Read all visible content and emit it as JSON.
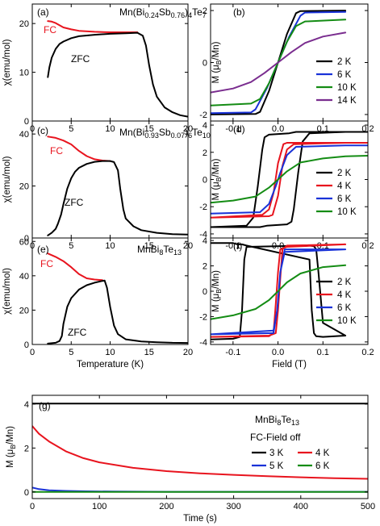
{
  "figure": {
    "xlabel_left": "Temperature (K)",
    "xlabel_right": "Field (T)",
    "xlabel_bottom": "Time (s)",
    "ylabel_chi": "χ(emu/mol)",
    "ylabel_M_prefix": "M (μ",
    "ylabel_M_sub": "B",
    "ylabel_M_suffix": "/Mn)"
  },
  "colors": {
    "black": "#000000",
    "red": "#e8141e",
    "blue": "#1932d8",
    "green": "#148c14",
    "purple": "#7a2d8f"
  },
  "chart_data": [
    {
      "id": "a",
      "type": "line",
      "panel_label": "(a)",
      "title_parts": [
        "Mn(Bi",
        "0.24",
        "Sb",
        "0.76",
        ")",
        "4",
        "Te",
        "7"
      ],
      "xlim": [
        0,
        20
      ],
      "ylim": [
        0,
        24
      ],
      "xticks": [
        0,
        5,
        10,
        15,
        20
      ],
      "yticks": [
        0,
        10,
        20
      ],
      "xlabel": "",
      "ylabel": "χ(emu/mol)",
      "annotations": [
        {
          "text": "FC",
          "color": "#e8141e"
        },
        {
          "text": "ZFC",
          "color": "#000000"
        }
      ],
      "series": [
        {
          "name": "FC",
          "color": "#e8141e",
          "x": [
            2,
            2.5,
            3,
            4,
            5,
            6,
            8,
            10,
            12,
            13.5
          ],
          "y": [
            20.5,
            20.4,
            20.1,
            19.2,
            18.8,
            18.5,
            18.3,
            18.2,
            18.2,
            18.2
          ]
        },
        {
          "name": "ZFC",
          "color": "#000000",
          "x": [
            2,
            2.2,
            2.5,
            3,
            3.5,
            4,
            5,
            6,
            8,
            10,
            12,
            13.5,
            14.2,
            14.6,
            15,
            15.5,
            16,
            17,
            18,
            19,
            20
          ],
          "y": [
            9,
            11,
            13,
            14.8,
            15.8,
            16.3,
            17.0,
            17.4,
            17.7,
            17.9,
            18.0,
            18.1,
            17.5,
            15.5,
            11.5,
            7.5,
            5.0,
            2.8,
            1.8,
            1.2,
            0.9
          ]
        }
      ]
    },
    {
      "id": "c",
      "type": "line",
      "panel_label": "(c)",
      "title_parts": [
        "Mn(Bi",
        "0.93",
        "Sb",
        "0.07",
        ")",
        "6",
        "Te",
        "10"
      ],
      "xlim": [
        0,
        20
      ],
      "ylim": [
        0,
        45
      ],
      "xticks": [
        0,
        5,
        10,
        15,
        20
      ],
      "yticks": [
        0,
        20,
        40
      ],
      "xlabel": "",
      "ylabel": "χ(emu/mol)",
      "annotations": [
        {
          "text": "FC",
          "color": "#e8141e"
        },
        {
          "text": "ZFC",
          "color": "#000000"
        }
      ],
      "series": [
        {
          "name": "FC",
          "color": "#e8141e",
          "x": [
            2,
            3,
            4,
            5,
            6,
            7,
            8,
            9,
            10
          ],
          "y": [
            39,
            38.5,
            37.5,
            36,
            33.5,
            31.5,
            30.3,
            29.8,
            29.6
          ]
        },
        {
          "name": "ZFC",
          "color": "#000000",
          "x": [
            2,
            2.5,
            3,
            3.3,
            3.7,
            4,
            4.5,
            5,
            5.5,
            6,
            7,
            8,
            9,
            10,
            10.5,
            11,
            11.3,
            11.7,
            12,
            13,
            14,
            16,
            18,
            20
          ],
          "y": [
            1,
            2,
            3.5,
            5.5,
            9,
            13,
            19,
            23,
            25.5,
            27,
            28.5,
            29.3,
            29.6,
            29.6,
            29.2,
            26,
            19,
            11,
            7.5,
            4.5,
            3.0,
            2.0,
            1.5,
            1.3
          ]
        }
      ]
    },
    {
      "id": "e",
      "type": "line",
      "panel_label": "(e)",
      "title_parts": [
        "MnBi",
        "8",
        "Te",
        "13"
      ],
      "xlim": [
        0,
        20
      ],
      "ylim": [
        0,
        62
      ],
      "xticks": [
        0,
        5,
        10,
        15,
        20
      ],
      "yticks": [
        0,
        20,
        40,
        60
      ],
      "xlabel": "Temperature (K)",
      "ylabel": "χ(emu/mol)",
      "annotations": [
        {
          "text": "FC",
          "color": "#e8141e"
        },
        {
          "text": "ZFC",
          "color": "#000000"
        }
      ],
      "series": [
        {
          "name": "FC",
          "color": "#e8141e",
          "x": [
            2,
            3,
            4,
            5,
            6,
            7,
            8,
            9
          ],
          "y": [
            53,
            51,
            48.5,
            45,
            41,
            38.5,
            37.8,
            37.5
          ]
        },
        {
          "name": "ZFC",
          "color": "#000000",
          "x": [
            2,
            3,
            3.5,
            3.8,
            4,
            4.5,
            5,
            6,
            7,
            8,
            9,
            9.3,
            9.6,
            10,
            10.5,
            11,
            12,
            14,
            16,
            18,
            20
          ],
          "y": [
            0.5,
            1,
            2,
            5,
            12,
            22,
            27,
            32,
            34.5,
            36,
            37,
            37.2,
            33,
            22,
            11,
            6,
            3,
            1.8,
            1.3,
            1.0,
            0.9
          ]
        }
      ]
    },
    {
      "id": "b",
      "type": "line",
      "panel_label": "(b)",
      "xlim": [
        -0.15,
        0.2
      ],
      "ylim": [
        -2.25,
        2.25
      ],
      "xticks": [
        -0.1,
        0,
        0.1,
        0.2
      ],
      "yticks": [
        -2,
        0,
        2
      ],
      "xlabel": "",
      "ylabel": "M (μB/Mn)",
      "series": [
        {
          "name": "2 K",
          "color": "#000000",
          "x": [
            -0.15,
            -0.05,
            -0.04,
            -0.02,
            0,
            0.02,
            0.04,
            0.05,
            0.15
          ],
          "y": [
            -2.0,
            -1.98,
            -1.9,
            -1.1,
            0,
            1.1,
            1.9,
            1.98,
            2.0
          ]
        },
        {
          "name": "6 K",
          "color": "#1932d8",
          "x": [
            -0.15,
            -0.06,
            -0.05,
            -0.025,
            0,
            0.025,
            0.05,
            0.06,
            0.15
          ],
          "y": [
            -1.95,
            -1.92,
            -1.8,
            -1.0,
            0,
            1.0,
            1.8,
            1.92,
            1.95
          ]
        },
        {
          "name": "10 K",
          "color": "#148c14",
          "x": [
            -0.15,
            -0.06,
            -0.04,
            -0.02,
            0,
            0.02,
            0.04,
            0.06,
            0.15
          ],
          "y": [
            -1.65,
            -1.58,
            -1.4,
            -0.8,
            0,
            0.8,
            1.4,
            1.58,
            1.65
          ]
        },
        {
          "name": "14 K",
          "color": "#7a2d8f",
          "x": [
            -0.15,
            -0.1,
            -0.06,
            -0.03,
            0,
            0.03,
            0.06,
            0.1,
            0.15
          ],
          "y": [
            -1.15,
            -1.0,
            -0.75,
            -0.4,
            0,
            0.4,
            0.75,
            1.0,
            1.15
          ]
        }
      ]
    },
    {
      "id": "d",
      "type": "line",
      "panel_label": "(d)",
      "xlim": [
        -0.15,
        0.2
      ],
      "ylim": [
        -4.3,
        4.3
      ],
      "xticks": [
        -0.1,
        0,
        0.1,
        0.2
      ],
      "yticks": [
        -4,
        -2,
        0,
        2,
        4
      ],
      "xlabel": "",
      "ylabel": "M (μB/Mn)",
      "series": [
        {
          "name": "2 K",
          "color": "#000000",
          "x": [
            -0.15,
            -0.05,
            -0.04,
            -0.025,
            0.02,
            0.03,
            0.035,
            0.045,
            0.055,
            0.07,
            0.15,
            0.2,
            0.15,
            0.05,
            0.04,
            0.025,
            -0.02,
            -0.03,
            -0.035,
            -0.045,
            -0.055,
            -0.07,
            -0.15
          ],
          "y": [
            -3.5,
            -3.5,
            -3.5,
            -3.4,
            -3.3,
            -3.1,
            -2.2,
            0.5,
            2.8,
            3.4,
            3.5,
            3.5,
            3.5,
            3.5,
            3.5,
            3.4,
            3.3,
            3.1,
            2.2,
            -0.5,
            -2.8,
            -3.4,
            -3.5
          ]
        },
        {
          "name": "4 K",
          "color": "#e8141e",
          "x": [
            -0.15,
            -0.02,
            -0.012,
            0,
            0.01,
            0.02,
            0.035,
            0.15,
            0.2,
            0.15,
            0.02,
            0.012,
            0,
            -0.01,
            -0.02,
            -0.035,
            -0.15
          ],
          "y": [
            -2.8,
            -2.7,
            -2.6,
            -1.2,
            1.0,
            2.2,
            2.6,
            2.7,
            2.7,
            2.7,
            2.7,
            2.6,
            1.2,
            -1.0,
            -2.2,
            -2.6,
            -2.8
          ]
        },
        {
          "name": "6 K",
          "color": "#1932d8",
          "x": [
            -0.15,
            -0.04,
            -0.02,
            -0.005,
            0.005,
            0.02,
            0.04,
            0.15,
            0.2
          ],
          "y": [
            -2.5,
            -2.4,
            -1.8,
            -0.5,
            0.5,
            1.8,
            2.4,
            2.5,
            2.5
          ]
        },
        {
          "name": "10 K",
          "color": "#148c14",
          "x": [
            -0.15,
            -0.1,
            -0.05,
            -0.02,
            0,
            0.02,
            0.05,
            0.1,
            0.15,
            0.2
          ],
          "y": [
            -1.7,
            -1.55,
            -1.25,
            -0.6,
            0,
            0.6,
            1.25,
            1.55,
            1.7,
            1.75
          ]
        }
      ]
    },
    {
      "id": "f",
      "type": "line",
      "panel_label": "(f)",
      "xlim": [
        -0.15,
        0.2
      ],
      "ylim": [
        -4.2,
        4.2
      ],
      "xticks": [
        -0.1,
        0,
        0.1,
        0.2
      ],
      "yticks": [
        -4,
        -2,
        0,
        2,
        4
      ],
      "xlabel": "Field (T)",
      "ylabel": "M (μB/Mn)",
      "series": [
        {
          "name": "2 K",
          "color": "#000000",
          "x": [
            -0.15,
            -0.1,
            -0.085,
            -0.08,
            -0.075,
            -0.07,
            0.07,
            0.08,
            0.085,
            0.09,
            0.1,
            0.15,
            0.1,
            0.085,
            0.08,
            0.075,
            0.07,
            -0.07,
            -0.08,
            -0.085,
            -0.09,
            -0.1,
            -0.15
          ],
          "y": [
            -3.8,
            -3.75,
            -3.6,
            -1.5,
            2.5,
            3.5,
            3.6,
            3.55,
            3.3,
            1.5,
            -2.5,
            -3.5,
            -3.6,
            -3.55,
            -3.3,
            -1.5,
            2.5,
            3.6,
            3.7,
            3.7,
            3.7,
            3.8,
            3.8
          ]
        },
        {
          "name": "4 K",
          "color": "#e8141e",
          "x": [
            -0.15,
            -0.02,
            -0.01,
            -0.005,
            0,
            0.005,
            0.02,
            0.15,
            0.02,
            0.01,
            0.005,
            0,
            -0.005,
            -0.02,
            -0.15
          ],
          "y": [
            -3.6,
            -3.55,
            -3.3,
            -1.0,
            1.5,
            3.3,
            3.5,
            3.7,
            3.6,
            3.3,
            1.0,
            -1.5,
            -3.3,
            -3.5,
            -3.6
          ]
        },
        {
          "name": "6 K",
          "color": "#1932d8",
          "x": [
            -0.15,
            -0.01,
            -0.002,
            0.005,
            0.015,
            0.15,
            0.015,
            0.005,
            -0.002,
            -0.01,
            -0.15
          ],
          "y": [
            -3.4,
            -3.3,
            -1.5,
            1.5,
            3.1,
            3.3,
            3.3,
            1.5,
            -1.5,
            -3.1,
            -3.4
          ]
        },
        {
          "name": "10 K",
          "color": "#148c14",
          "x": [
            -0.15,
            -0.1,
            -0.05,
            -0.02,
            0,
            0.02,
            0.05,
            0.1,
            0.15
          ],
          "y": [
            -2.2,
            -1.9,
            -1.4,
            -0.7,
            0,
            0.7,
            1.4,
            1.9,
            2.05
          ]
        }
      ]
    },
    {
      "id": "g",
      "type": "line",
      "panel_label": "(g)",
      "xlim": [
        0,
        500
      ],
      "ylim": [
        -0.3,
        4.4
      ],
      "xticks": [
        0,
        100,
        200,
        300,
        400,
        500
      ],
      "yticks": [
        0,
        2,
        4
      ],
      "xlabel": "Time (s)",
      "ylabel": "M (μB/Mn)",
      "title_parts": [
        "MnBi",
        "8",
        "Te",
        "13"
      ],
      "subtitle": "FC-Field off",
      "series": [
        {
          "name": "3 K",
          "color": "#000000",
          "x": [
            0,
            100,
            200,
            300,
            400,
            500
          ],
          "y": [
            4.02,
            4.02,
            4.02,
            4.02,
            4.02,
            4.02
          ]
        },
        {
          "name": "4 K",
          "color": "#e8141e",
          "x": [
            0,
            10,
            25,
            50,
            75,
            100,
            150,
            200,
            250,
            300,
            350,
            400,
            450,
            500
          ],
          "y": [
            3.0,
            2.65,
            2.3,
            1.85,
            1.55,
            1.35,
            1.1,
            0.95,
            0.85,
            0.78,
            0.72,
            0.67,
            0.63,
            0.6
          ]
        },
        {
          "name": "5 K",
          "color": "#1932d8",
          "x": [
            0,
            10,
            25,
            50,
            80,
            120,
            200,
            500
          ],
          "y": [
            0.2,
            0.13,
            0.08,
            0.05,
            0.03,
            0.02,
            0.01,
            0.01
          ]
        },
        {
          "name": "6 K",
          "color": "#148c14",
          "x": [
            0,
            100,
            200,
            300,
            400,
            500
          ],
          "y": [
            0.0,
            0.0,
            0.0,
            0.0,
            0.0,
            0.0
          ]
        }
      ]
    }
  ]
}
